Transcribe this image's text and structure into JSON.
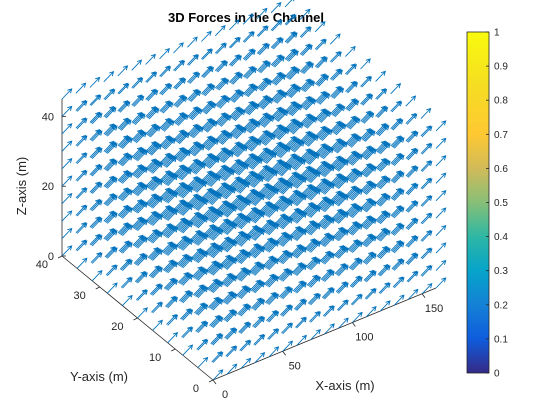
{
  "chart_data": {
    "type": "quiver3",
    "title": "3D Forces in the Channel",
    "xlabel": "X-axis (m)",
    "ylabel": "Y-axis (m)",
    "zlabel": "Z-axis (m)",
    "xlim": [
      0,
      160
    ],
    "ylim": [
      0,
      40
    ],
    "zlim": [
      0,
      45
    ],
    "xticks": [
      "0",
      "50",
      "100",
      "150"
    ],
    "yticks": [
      "0",
      "10",
      "20",
      "30",
      "40"
    ],
    "zticks": [
      "0",
      "20",
      "40"
    ],
    "grid": {
      "x": [
        0,
        160,
        10
      ],
      "y": [
        0,
        40,
        4
      ],
      "z": [
        0,
        45,
        5
      ]
    },
    "vector": {
      "u": 1.0,
      "v": 0.05,
      "w": 0.15
    },
    "arrow_color": "#0072BD",
    "colorbar": {
      "colormap": "parula",
      "limits": [
        0,
        1
      ],
      "ticks": [
        "0",
        "0.1",
        "0.2",
        "0.3",
        "0.4",
        "0.5",
        "0.6",
        "0.7",
        "0.8",
        "0.9",
        "1"
      ]
    }
  }
}
